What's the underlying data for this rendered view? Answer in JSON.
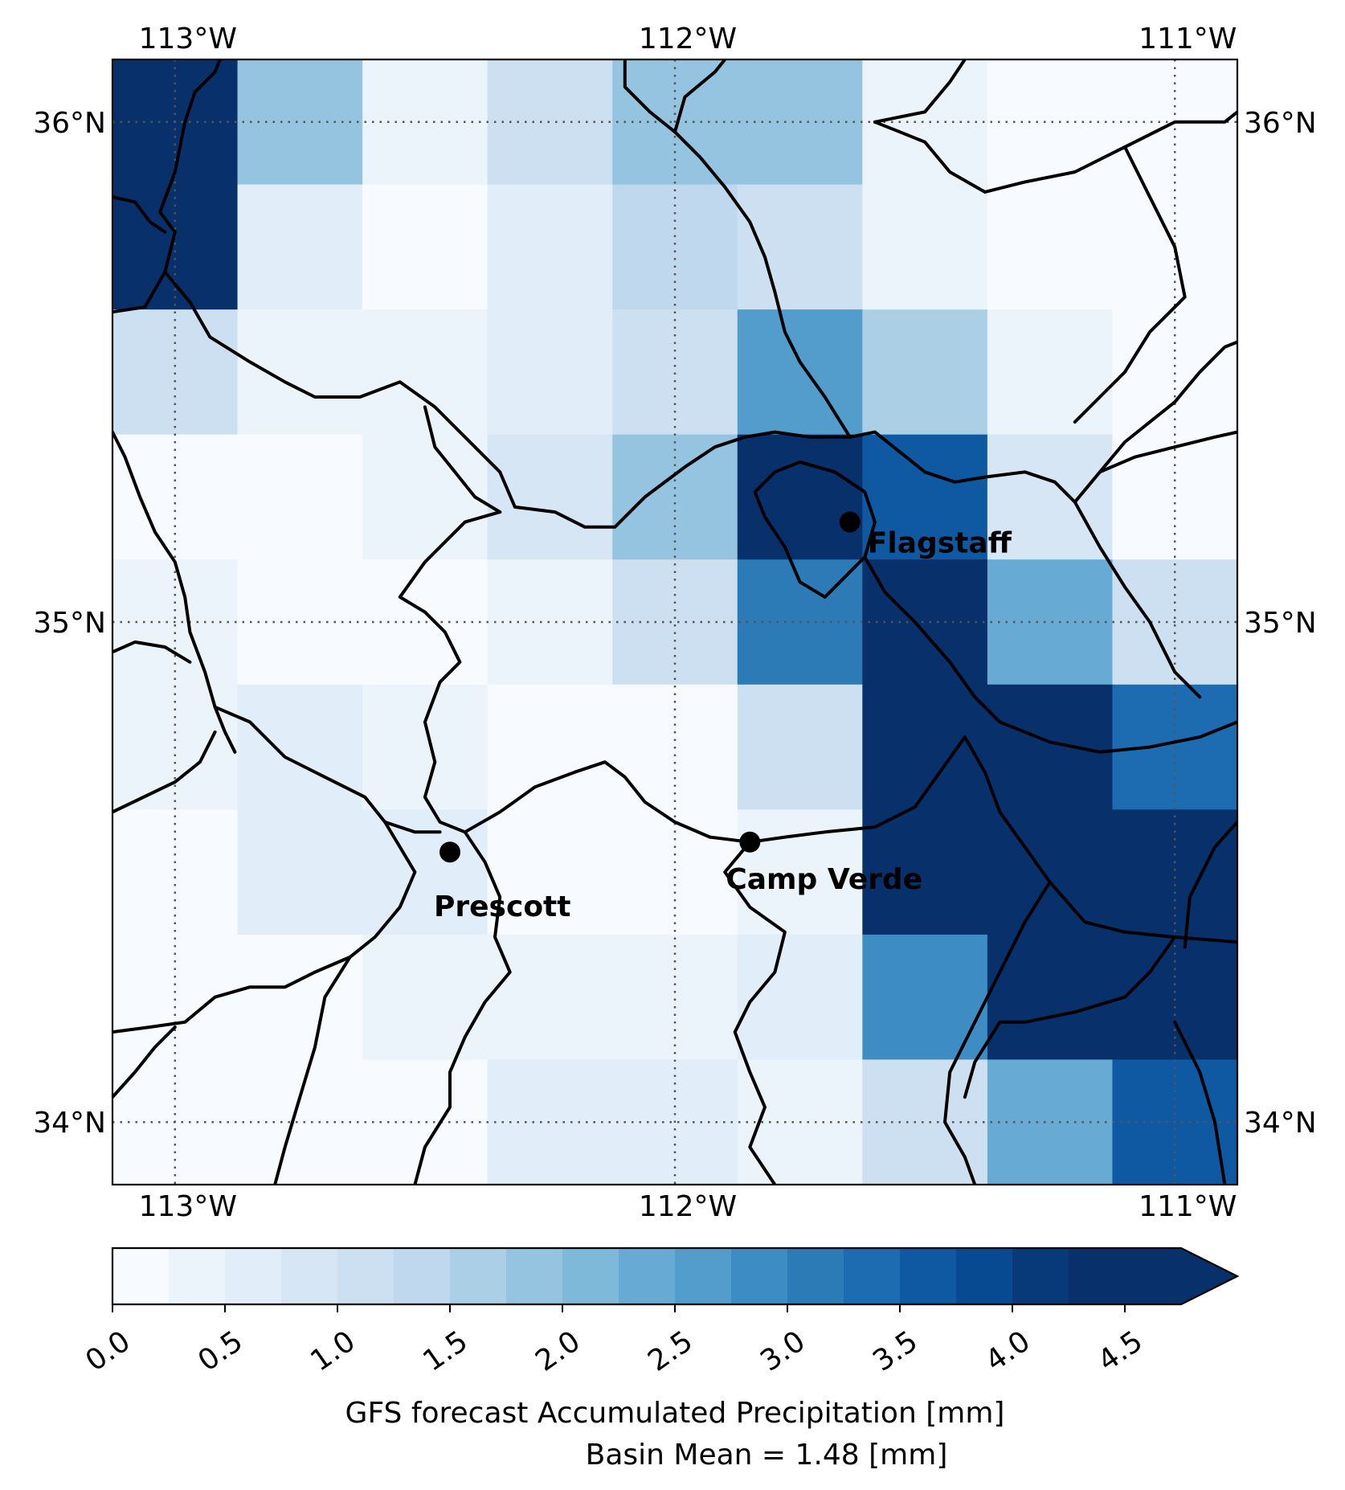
{
  "map": {
    "lon_ticks": [
      "113°W",
      "112°W",
      "111°W"
    ],
    "lat_ticks": [
      "36°N",
      "35°N",
      "34°N"
    ],
    "grid_style": "dotted",
    "cities": [
      {
        "name": "Flagstaff",
        "lon": -111.65,
        "lat": 35.2
      },
      {
        "name": "Camp Verde",
        "lon": -111.85,
        "lat": 34.56
      },
      {
        "name": "Prescott",
        "lon": -112.45,
        "lat": 34.54
      }
    ],
    "grid": {
      "lon_min": -113.125,
      "lon_max": -110.875,
      "lat_min": 33.875,
      "lat_max": 36.125,
      "cell_size_deg": 0.25,
      "rows_top_to_bottom": [
        [
          4.75,
          1.75,
          0.25,
          1.0,
          1.75,
          1.75,
          0.25,
          0.0,
          0.0
        ],
        [
          4.75,
          0.5,
          0.0,
          0.5,
          1.25,
          1.0,
          0.25,
          0.0,
          0.0
        ],
        [
          1.0,
          0.25,
          0.25,
          0.5,
          1.0,
          2.5,
          1.5,
          0.25,
          0.0
        ],
        [
          0.0,
          0.0,
          0.25,
          0.75,
          1.75,
          4.75,
          3.5,
          0.75,
          0.0
        ],
        [
          0.25,
          0.0,
          0.0,
          0.25,
          1.0,
          3.0,
          4.75,
          2.25,
          1.0
        ],
        [
          0.25,
          0.5,
          0.25,
          0.0,
          0.0,
          1.0,
          4.75,
          4.75,
          3.25
        ],
        [
          0.0,
          0.5,
          0.5,
          0.0,
          0.0,
          0.25,
          4.75,
          4.75,
          4.75
        ],
        [
          0.0,
          0.0,
          0.25,
          0.25,
          0.25,
          0.5,
          2.75,
          4.75,
          4.75
        ],
        [
          0.0,
          0.0,
          0.0,
          0.5,
          0.5,
          0.25,
          1.0,
          2.25,
          3.5
        ]
      ]
    },
    "boundaries": [
      [
        [
          -113.125,
          35.62
        ],
        [
          -113.06,
          35.63
        ],
        [
          -113.02,
          35.7
        ],
        [
          -113.0,
          35.78
        ],
        [
          -113.03,
          35.82
        ],
        [
          -113.0,
          35.9
        ],
        [
          -112.98,
          36.0
        ],
        [
          -112.96,
          36.06
        ],
        [
          -112.92,
          36.1
        ],
        [
          -112.91,
          36.125
        ]
      ],
      [
        [
          -113.125,
          35.85
        ],
        [
          -113.08,
          35.84
        ],
        [
          -113.05,
          35.8
        ],
        [
          -113.02,
          35.78
        ]
      ],
      [
        [
          -113.02,
          35.7
        ],
        [
          -112.97,
          35.64
        ],
        [
          -112.93,
          35.57
        ],
        [
          -112.85,
          35.52
        ],
        [
          -112.78,
          35.48
        ],
        [
          -112.72,
          35.45
        ],
        [
          -112.63,
          35.45
        ],
        [
          -112.55,
          35.48
        ],
        [
          -112.48,
          35.43
        ],
        [
          -112.42,
          35.37
        ],
        [
          -112.35,
          35.3
        ],
        [
          -112.32,
          35.23
        ],
        [
          -112.24,
          35.22
        ],
        [
          -112.18,
          35.19
        ],
        [
          -112.12,
          35.19
        ],
        [
          -112.06,
          35.25
        ],
        [
          -111.98,
          35.31
        ],
        [
          -111.92,
          35.35
        ],
        [
          -111.86,
          35.37
        ],
        [
          -111.8,
          35.38
        ],
        [
          -111.73,
          35.37
        ],
        [
          -111.65,
          35.37
        ],
        [
          -111.6,
          35.38
        ],
        [
          -111.55,
          35.34
        ],
        [
          -111.5,
          35.3
        ],
        [
          -111.44,
          35.28
        ],
        [
          -111.38,
          35.29
        ],
        [
          -111.3,
          35.3
        ],
        [
          -111.24,
          35.28
        ],
        [
          -111.2,
          35.24
        ]
      ],
      [
        [
          -112.5,
          35.43
        ],
        [
          -112.48,
          35.35
        ],
        [
          -112.44,
          35.3
        ],
        [
          -112.4,
          35.25
        ],
        [
          -112.35,
          35.22
        ]
      ],
      [
        [
          -112.35,
          35.22
        ],
        [
          -112.42,
          35.2
        ],
        [
          -112.5,
          35.12
        ],
        [
          -112.55,
          35.05
        ],
        [
          -112.5,
          35.02
        ],
        [
          -112.46,
          34.98
        ],
        [
          -112.43,
          34.92
        ],
        [
          -112.47,
          34.88
        ],
        [
          -112.5,
          34.8
        ],
        [
          -112.48,
          34.72
        ],
        [
          -112.5,
          34.65
        ],
        [
          -112.47,
          34.6
        ],
        [
          -112.42,
          34.58
        ]
      ],
      [
        [
          -113.125,
          35.38
        ],
        [
          -113.1,
          35.33
        ],
        [
          -113.07,
          35.25
        ],
        [
          -113.04,
          35.18
        ],
        [
          -113.0,
          35.12
        ],
        [
          -112.98,
          35.05
        ],
        [
          -112.97,
          34.98
        ],
        [
          -112.94,
          34.9
        ],
        [
          -112.92,
          34.83
        ],
        [
          -112.9,
          34.78
        ],
        [
          -112.88,
          34.74
        ]
      ],
      [
        [
          -113.125,
          34.94
        ],
        [
          -113.08,
          34.96
        ],
        [
          -113.02,
          34.95
        ],
        [
          -112.97,
          34.92
        ]
      ],
      [
        [
          -112.92,
          34.83
        ],
        [
          -112.85,
          34.8
        ],
        [
          -112.78,
          34.73
        ],
        [
          -112.7,
          34.69
        ],
        [
          -112.62,
          34.65
        ],
        [
          -112.58,
          34.6
        ],
        [
          -112.52,
          34.58
        ],
        [
          -112.47,
          34.58
        ]
      ],
      [
        [
          -112.92,
          34.78
        ],
        [
          -112.95,
          34.72
        ],
        [
          -113.0,
          34.68
        ],
        [
          -113.125,
          34.62
        ]
      ],
      [
        [
          -112.58,
          34.6
        ],
        [
          -112.55,
          34.55
        ],
        [
          -112.52,
          34.5
        ],
        [
          -112.55,
          34.43
        ],
        [
          -112.6,
          34.37
        ],
        [
          -112.65,
          34.33
        ],
        [
          -112.72,
          34.3
        ],
        [
          -112.78,
          34.27
        ],
        [
          -112.85,
          34.27
        ],
        [
          -112.92,
          34.25
        ],
        [
          -112.98,
          34.2
        ],
        [
          -113.05,
          34.19
        ],
        [
          -113.125,
          34.18
        ]
      ],
      [
        [
          -112.42,
          34.58
        ],
        [
          -112.38,
          34.52
        ],
        [
          -112.35,
          34.45
        ],
        [
          -112.36,
          34.37
        ],
        [
          -112.33,
          34.3
        ],
        [
          -112.38,
          34.24
        ],
        [
          -112.42,
          34.17
        ],
        [
          -112.45,
          34.1
        ],
        [
          -112.45,
          34.03
        ],
        [
          -112.5,
          33.95
        ],
        [
          -112.52,
          33.875
        ]
      ],
      [
        [
          -112.42,
          34.58
        ],
        [
          -112.35,
          34.62
        ],
        [
          -112.28,
          34.67
        ],
        [
          -112.2,
          34.7
        ],
        [
          -112.14,
          34.72
        ],
        [
          -112.1,
          34.69
        ],
        [
          -112.06,
          34.64
        ],
        [
          -112.0,
          34.6
        ],
        [
          -111.93,
          34.57
        ],
        [
          -111.85,
          34.56
        ]
      ],
      [
        [
          -111.85,
          34.56
        ],
        [
          -111.78,
          34.57
        ],
        [
          -111.7,
          34.58
        ],
        [
          -111.6,
          34.59
        ],
        [
          -111.52,
          34.63
        ],
        [
          -111.47,
          34.7
        ],
        [
          -111.42,
          34.77
        ]
      ],
      [
        [
          -111.85,
          34.56
        ],
        [
          -111.9,
          34.5
        ],
        [
          -111.85,
          34.43
        ],
        [
          -111.78,
          34.38
        ],
        [
          -111.8,
          34.3
        ],
        [
          -111.85,
          34.24
        ],
        [
          -111.88,
          34.18
        ],
        [
          -111.85,
          34.1
        ],
        [
          -111.82,
          34.03
        ],
        [
          -111.85,
          33.95
        ],
        [
          -111.8,
          33.875
        ]
      ],
      [
        [
          -111.62,
          35.13
        ],
        [
          -111.58,
          35.06
        ],
        [
          -111.52,
          35.0
        ],
        [
          -111.45,
          34.92
        ],
        [
          -111.4,
          34.85
        ],
        [
          -111.35,
          34.8
        ],
        [
          -111.25,
          34.76
        ],
        [
          -111.15,
          34.74
        ],
        [
          -111.05,
          34.75
        ],
        [
          -110.95,
          34.77
        ],
        [
          -110.875,
          34.8
        ]
      ],
      [
        [
          -111.42,
          34.77
        ],
        [
          -111.38,
          34.7
        ],
        [
          -111.35,
          34.62
        ],
        [
          -111.3,
          34.55
        ],
        [
          -111.25,
          34.48
        ],
        [
          -111.18,
          34.4
        ],
        [
          -111.1,
          34.38
        ],
        [
          -111.0,
          34.37
        ],
        [
          -110.875,
          34.36
        ]
      ],
      [
        [
          -111.25,
          34.48
        ],
        [
          -111.3,
          34.4
        ],
        [
          -111.35,
          34.3
        ],
        [
          -111.4,
          34.2
        ],
        [
          -111.45,
          34.1
        ],
        [
          -111.46,
          34.0
        ],
        [
          -111.42,
          33.93
        ],
        [
          -111.4,
          33.875
        ]
      ],
      [
        [
          -110.875,
          34.6
        ],
        [
          -110.92,
          34.55
        ],
        [
          -110.97,
          34.45
        ],
        [
          -110.98,
          34.35
        ]
      ],
      [
        [
          -111.0,
          34.37
        ],
        [
          -111.05,
          34.3
        ],
        [
          -111.1,
          34.25
        ],
        [
          -111.2,
          34.22
        ],
        [
          -111.3,
          34.2
        ],
        [
          -111.35,
          34.2
        ]
      ],
      [
        [
          -111.35,
          34.2
        ],
        [
          -111.4,
          34.12
        ],
        [
          -111.42,
          34.05
        ]
      ],
      [
        [
          -111.0,
          34.2
        ],
        [
          -110.95,
          34.1
        ],
        [
          -110.92,
          34.0
        ],
        [
          -110.9,
          33.875
        ]
      ],
      [
        [
          -111.2,
          35.24
        ],
        [
          -111.15,
          35.15
        ],
        [
          -111.1,
          35.07
        ],
        [
          -111.05,
          35.0
        ],
        [
          -111.0,
          34.9
        ],
        [
          -110.95,
          34.85
        ]
      ],
      [
        [
          -111.2,
          35.24
        ],
        [
          -111.15,
          35.3
        ],
        [
          -111.1,
          35.36
        ],
        [
          -111.05,
          35.4
        ],
        [
          -111.0,
          35.44
        ],
        [
          -110.95,
          35.5
        ],
        [
          -110.9,
          35.55
        ],
        [
          -110.875,
          35.56
        ]
      ],
      [
        [
          -111.15,
          35.3
        ],
        [
          -111.08,
          35.33
        ],
        [
          -111.0,
          35.35
        ],
        [
          -110.92,
          35.37
        ],
        [
          -110.875,
          35.38
        ]
      ],
      [
        [
          -111.82,
          35.21
        ],
        [
          -111.78,
          35.15
        ],
        [
          -111.75,
          35.08
        ],
        [
          -111.7,
          35.05
        ],
        [
          -111.62,
          35.13
        ],
        [
          -111.6,
          35.2
        ],
        [
          -111.62,
          35.26
        ],
        [
          -111.68,
          35.3
        ],
        [
          -111.75,
          35.32
        ],
        [
          -111.8,
          35.3
        ],
        [
          -111.84,
          35.26
        ],
        [
          -111.82,
          35.21
        ]
      ],
      [
        [
          -111.65,
          35.37
        ],
        [
          -111.7,
          35.45
        ],
        [
          -111.75,
          35.52
        ],
        [
          -111.78,
          35.58
        ],
        [
          -111.8,
          35.66
        ],
        [
          -111.82,
          35.73
        ],
        [
          -111.85,
          35.8
        ],
        [
          -111.9,
          35.87
        ],
        [
          -111.95,
          35.93
        ],
        [
          -112.0,
          35.98
        ],
        [
          -112.05,
          36.02
        ],
        [
          -112.1,
          36.07
        ],
        [
          -112.1,
          36.125
        ]
      ],
      [
        [
          -111.6,
          36.0
        ],
        [
          -111.5,
          36.02
        ],
        [
          -111.45,
          36.08
        ],
        [
          -111.42,
          36.125
        ]
      ],
      [
        [
          -111.6,
          36.0
        ],
        [
          -111.55,
          35.98
        ],
        [
          -111.5,
          35.96
        ],
        [
          -111.45,
          35.9
        ],
        [
          -111.38,
          35.86
        ],
        [
          -111.3,
          35.88
        ],
        [
          -111.2,
          35.9
        ],
        [
          -111.1,
          35.95
        ],
        [
          -111.0,
          36.0
        ],
        [
          -110.9,
          36.0
        ],
        [
          -110.875,
          36.02
        ]
      ],
      [
        [
          -111.1,
          35.95
        ],
        [
          -111.05,
          35.85
        ],
        [
          -111.0,
          35.75
        ],
        [
          -110.98,
          35.65
        ],
        [
          -111.05,
          35.58
        ],
        [
          -111.1,
          35.5
        ],
        [
          -111.15,
          35.45
        ],
        [
          -111.2,
          35.4
        ]
      ],
      [
        [
          -112.0,
          35.98
        ],
        [
          -111.98,
          36.05
        ],
        [
          -111.92,
          36.1
        ],
        [
          -111.9,
          36.125
        ]
      ],
      [
        [
          -112.65,
          34.33
        ],
        [
          -112.7,
          34.25
        ],
        [
          -112.72,
          34.15
        ],
        [
          -112.75,
          34.05
        ],
        [
          -112.78,
          33.95
        ],
        [
          -112.8,
          33.875
        ]
      ],
      [
        [
          -113.125,
          34.05
        ],
        [
          -113.08,
          34.1
        ],
        [
          -113.04,
          34.15
        ],
        [
          -113.0,
          34.19
        ]
      ]
    ]
  },
  "colorbar": {
    "ticks": [
      "0.0",
      "0.5",
      "1.0",
      "1.5",
      "2.0",
      "2.5",
      "3.0",
      "3.5",
      "4.0",
      "4.5"
    ],
    "tick_values": [
      0.0,
      0.5,
      1.0,
      1.5,
      2.0,
      2.5,
      3.0,
      3.5,
      4.0,
      4.5
    ],
    "vmin": 0.0,
    "vmax": 4.75,
    "step": 0.25,
    "extend": "max",
    "colors": [
      "#f7fbff",
      "#ebf3fb",
      "#e1edf8",
      "#d6e6f4",
      "#cde0f1",
      "#bfd8ed",
      "#abd0e6",
      "#94c4df",
      "#7fb9da",
      "#67aad4",
      "#529dcc",
      "#3d8dc4",
      "#2c7bb6",
      "#1d6cb1",
      "#0e59a2",
      "#084a91",
      "#083a7a",
      "#08306b",
      "#08306b"
    ],
    "label": "GFS forecast Accumulated Precipitation [mm]",
    "sublabel": "Basin Mean = 1.48 [mm]"
  }
}
